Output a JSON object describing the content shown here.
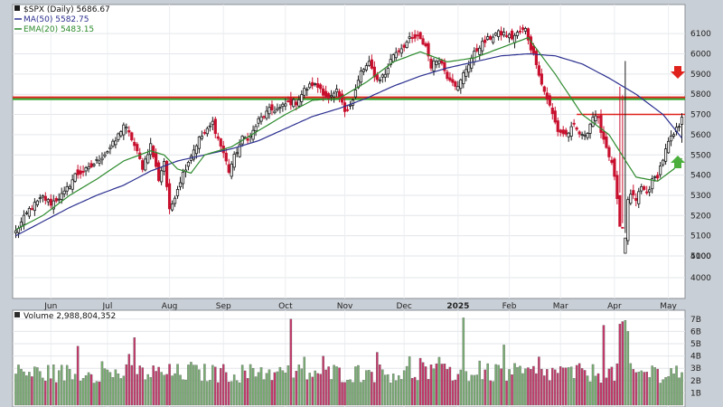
{
  "legend": {
    "symbol": "$SPX (Daily) 5686.67",
    "ma50": "MA(50) 5582.75",
    "ema20": "EMA(20) 5483.15",
    "volume": "Volume 2,988,804,352"
  },
  "colors": {
    "up": "#2f8a2f",
    "down": "#c8102e",
    "ma50": "#2b2f8f",
    "ema20": "#2c8a2c",
    "resistance": "#e0221c",
    "support": "#2aa52a",
    "vol_up": "#79ae73",
    "vol_down": "#c5386a"
  },
  "chart_data": {
    "type": "candlestick",
    "price_axis": {
      "ylim": [
        3800,
        6200
      ],
      "ticks": [
        4000,
        4100,
        5000,
        5100,
        5200,
        5300,
        5400,
        5500,
        5600,
        5700,
        5800,
        5900,
        6000,
        6100
      ],
      "tick_labels": [
        "4000",
        "4100",
        "5000",
        "5100",
        "5200",
        "5300",
        "5400",
        "5500",
        "5600",
        "5700",
        "5800",
        "5900",
        "6000",
        "6100"
      ]
    },
    "volume_axis": {
      "ylim": [
        0,
        7.2
      ],
      "ticks": [
        1,
        2,
        3,
        4,
        5,
        6,
        7
      ],
      "tick_labels": [
        "1B",
        "2B",
        "3B",
        "4B",
        "5B",
        "6B",
        "7B"
      ]
    },
    "x_labels": [
      "Jun",
      "Jul",
      "Aug",
      "Sep",
      "Oct",
      "Nov",
      "Dec",
      "2025",
      "Feb",
      "Mar",
      "Apr",
      "May"
    ],
    "x_label_index": [
      13,
      34,
      57,
      77,
      100,
      122,
      144,
      164,
      183,
      202,
      222,
      242
    ],
    "n_days": 248,
    "anchors": [
      [
        0,
        5120
      ],
      [
        5,
        5230
      ],
      [
        10,
        5290
      ],
      [
        13,
        5260
      ],
      [
        18,
        5310
      ],
      [
        22,
        5400
      ],
      [
        27,
        5430
      ],
      [
        31,
        5480
      ],
      [
        34,
        5520
      ],
      [
        37,
        5570
      ],
      [
        40,
        5650
      ],
      [
        43,
        5580
      ],
      [
        47,
        5440
      ],
      [
        50,
        5550
      ],
      [
        53,
        5380
      ],
      [
        55,
        5470
      ],
      [
        57,
        5220
      ],
      [
        59,
        5300
      ],
      [
        62,
        5410
      ],
      [
        65,
        5500
      ],
      [
        68,
        5580
      ],
      [
        71,
        5620
      ],
      [
        73,
        5660
      ],
      [
        75,
        5580
      ],
      [
        77,
        5510
      ],
      [
        79,
        5420
      ],
      [
        81,
        5490
      ],
      [
        84,
        5580
      ],
      [
        87,
        5590
      ],
      [
        90,
        5670
      ],
      [
        94,
        5720
      ],
      [
        98,
        5730
      ],
      [
        101,
        5760
      ],
      [
        104,
        5760
      ],
      [
        107,
        5820
      ],
      [
        110,
        5850
      ],
      [
        113,
        5830
      ],
      [
        116,
        5770
      ],
      [
        119,
        5810
      ],
      [
        122,
        5720
      ],
      [
        125,
        5770
      ],
      [
        128,
        5910
      ],
      [
        131,
        5950
      ],
      [
        134,
        5870
      ],
      [
        137,
        5900
      ],
      [
        140,
        6000
      ],
      [
        143,
        6030
      ],
      [
        146,
        6070
      ],
      [
        149,
        6080
      ],
      [
        152,
        6040
      ],
      [
        154,
        5940
      ],
      [
        157,
        5980
      ],
      [
        160,
        5890
      ],
      [
        162,
        5870
      ],
      [
        164,
        5830
      ],
      [
        166,
        5900
      ],
      [
        169,
        5980
      ],
      [
        172,
        6040
      ],
      [
        175,
        6070
      ],
      [
        178,
        6100
      ],
      [
        181,
        6100
      ],
      [
        184,
        6080
      ],
      [
        187,
        6110
      ],
      [
        189,
        6120
      ],
      [
        191,
        6030
      ],
      [
        193,
        5960
      ],
      [
        195,
        5850
      ],
      [
        197,
        5780
      ],
      [
        199,
        5700
      ],
      [
        201,
        5620
      ],
      [
        204,
        5600
      ],
      [
        207,
        5640
      ],
      [
        210,
        5590
      ],
      [
        212,
        5620
      ],
      [
        214,
        5690
      ],
      [
        216,
        5670
      ],
      [
        218,
        5580
      ],
      [
        220,
        5500
      ],
      [
        222,
        5400
      ],
      [
        224,
        5140
      ],
      [
        225,
        4980
      ],
      [
        226,
        5080
      ],
      [
        227,
        5280
      ],
      [
        228,
        5300
      ],
      [
        230,
        5280
      ],
      [
        232,
        5340
      ],
      [
        234,
        5310
      ],
      [
        236,
        5370
      ],
      [
        238,
        5400
      ],
      [
        240,
        5480
      ],
      [
        242,
        5560
      ],
      [
        244,
        5600
      ],
      [
        246,
        5650
      ],
      [
        247,
        5686.67
      ]
    ],
    "ma50": [
      [
        0,
        5100
      ],
      [
        10,
        5170
      ],
      [
        20,
        5240
      ],
      [
        30,
        5300
      ],
      [
        40,
        5350
      ],
      [
        50,
        5420
      ],
      [
        60,
        5470
      ],
      [
        70,
        5500
      ],
      [
        80,
        5530
      ],
      [
        90,
        5570
      ],
      [
        100,
        5630
      ],
      [
        110,
        5690
      ],
      [
        120,
        5730
      ],
      [
        130,
        5780
      ],
      [
        140,
        5840
      ],
      [
        150,
        5890
      ],
      [
        160,
        5930
      ],
      [
        170,
        5960
      ],
      [
        180,
        5990
      ],
      [
        190,
        6000
      ],
      [
        200,
        5990
      ],
      [
        210,
        5950
      ],
      [
        220,
        5880
      ],
      [
        230,
        5800
      ],
      [
        240,
        5700
      ],
      [
        247,
        5582.75
      ]
    ],
    "ema20": [
      [
        0,
        5130
      ],
      [
        10,
        5200
      ],
      [
        20,
        5300
      ],
      [
        30,
        5380
      ],
      [
        40,
        5470
      ],
      [
        50,
        5520
      ],
      [
        55,
        5500
      ],
      [
        60,
        5430
      ],
      [
        65,
        5410
      ],
      [
        70,
        5500
      ],
      [
        80,
        5540
      ],
      [
        90,
        5620
      ],
      [
        100,
        5700
      ],
      [
        110,
        5770
      ],
      [
        120,
        5780
      ],
      [
        130,
        5860
      ],
      [
        140,
        5960
      ],
      [
        150,
        6010
      ],
      [
        160,
        5960
      ],
      [
        170,
        5980
      ],
      [
        180,
        6030
      ],
      [
        190,
        6080
      ],
      [
        200,
        5900
      ],
      [
        210,
        5700
      ],
      [
        220,
        5600
      ],
      [
        230,
        5390
      ],
      [
        238,
        5370
      ],
      [
        244,
        5430
      ],
      [
        247,
        5483.15
      ]
    ],
    "resistance_line": 5780,
    "support_line": 5780,
    "overhead_line": {
      "value": 5700,
      "from_index": 208
    },
    "notable_candles": [
      {
        "index": 224,
        "low": 4880
      },
      {
        "index": 225,
        "low": 4840
      },
      {
        "index": 247,
        "low": 5560
      }
    ],
    "volume_peaks": [
      {
        "index": 23,
        "value": 4.8
      },
      {
        "index": 44,
        "value": 5.5
      },
      {
        "index": 102,
        "value": 7.0
      },
      {
        "index": 134,
        "value": 4.3
      },
      {
        "index": 157,
        "value": 3.9
      },
      {
        "index": 166,
        "value": 7.1
      },
      {
        "index": 181,
        "value": 4.9
      },
      {
        "index": 218,
        "value": 6.5
      },
      {
        "index": 224,
        "value": 6.6
      },
      {
        "index": 225,
        "value": 6.8
      },
      {
        "index": 226,
        "value": 6.9
      },
      {
        "index": 227,
        "value": 6.0
      }
    ]
  }
}
